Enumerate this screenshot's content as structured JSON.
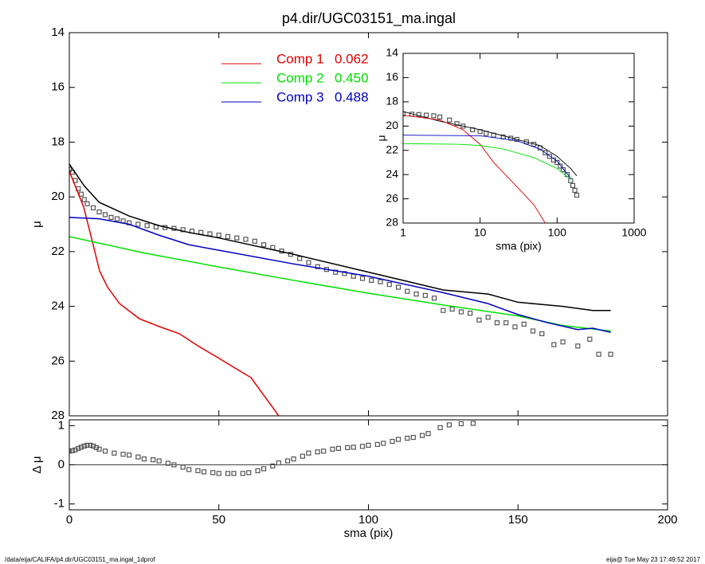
{
  "chart_data": [
    {
      "type": "line",
      "title": "p4.dir/UGC03151_ma.ingal",
      "ylabel": "μ",
      "xlim": [
        0,
        200
      ],
      "xticks": [
        0,
        50,
        100,
        150,
        200
      ],
      "ylim": [
        28,
        14
      ],
      "yticks": [
        14,
        16,
        18,
        20,
        22,
        24,
        26,
        28
      ],
      "series": [
        {
          "mode": "points",
          "color": "#555555",
          "x": [
            0,
            1,
            2,
            3,
            4,
            5,
            6,
            8,
            10,
            12,
            14,
            16,
            18,
            20,
            23,
            26,
            29,
            32,
            35,
            38,
            41,
            44,
            47,
            50,
            53,
            56,
            59,
            62,
            65,
            68,
            71,
            74,
            77,
            80,
            83,
            86,
            89,
            92,
            95,
            98,
            101,
            104,
            107,
            110,
            113,
            116,
            119,
            122,
            125,
            128,
            131,
            134,
            137,
            140,
            143,
            146,
            149,
            152,
            155,
            158,
            162,
            165,
            170,
            174,
            177,
            181
          ],
          "values": [
            19.0,
            19.1,
            19.4,
            19.7,
            19.9,
            20.1,
            20.25,
            20.4,
            20.55,
            20.65,
            20.75,
            20.8,
            20.88,
            20.95,
            21.0,
            21.05,
            21.1,
            21.12,
            21.15,
            21.2,
            21.25,
            21.3,
            21.35,
            21.4,
            21.45,
            21.5,
            21.55,
            21.62,
            21.75,
            21.85,
            21.98,
            22.1,
            22.25,
            22.4,
            22.55,
            22.65,
            22.75,
            22.8,
            22.9,
            22.98,
            23.05,
            23.1,
            23.2,
            23.3,
            23.45,
            23.55,
            23.6,
            23.7,
            24.15,
            24.1,
            24.2,
            24.25,
            24.5,
            24.4,
            24.6,
            24.6,
            24.75,
            24.65,
            24.9,
            25.0,
            25.4,
            25.3,
            25.45,
            25.2,
            25.75,
            25.75
          ]
        },
        {
          "mode": "line",
          "color": "#000000",
          "x": [
            0,
            5,
            10,
            20,
            30,
            40,
            50,
            75,
            100,
            125,
            140,
            150,
            165,
            175,
            181
          ],
          "values": [
            18.8,
            19.6,
            20.2,
            20.7,
            21.05,
            21.3,
            21.5,
            22.1,
            22.75,
            23.4,
            23.55,
            23.85,
            24.0,
            24.15,
            24.15
          ]
        },
        {
          "mode": "line",
          "name": "Comp 1",
          "fraction": "0.062",
          "color": "#e00000",
          "x": [
            0,
            4.8,
            7.5,
            10.1,
            12.8,
            16.8,
            23.4,
            30.1,
            36.8,
            43.4,
            50.1,
            56.7,
            60.7,
            64.7,
            68.7,
            70.0
          ],
          "values": [
            19.06,
            20.37,
            21.54,
            22.7,
            23.3,
            23.9,
            24.45,
            24.74,
            25.0,
            25.47,
            25.9,
            26.34,
            26.6,
            27.2,
            27.8,
            28.0
          ]
        },
        {
          "mode": "line",
          "name": "Comp 2",
          "fraction": "0.450",
          "color": "#00e000",
          "x": [
            0,
            25,
            50,
            75,
            100,
            125,
            150,
            165,
            181
          ],
          "values": [
            21.45,
            22.05,
            22.56,
            23.05,
            23.52,
            23.95,
            24.35,
            24.7,
            24.9
          ]
        },
        {
          "mode": "line",
          "name": "Comp 3",
          "fraction": "0.488",
          "color": "#0000c0",
          "x": [
            0,
            10,
            20,
            30,
            40,
            50,
            75,
            100,
            125,
            140,
            150,
            160,
            170,
            175,
            181
          ],
          "values": [
            20.75,
            20.8,
            21.0,
            21.4,
            21.75,
            21.95,
            22.45,
            22.9,
            23.5,
            23.9,
            24.3,
            24.6,
            24.85,
            24.8,
            24.95
          ]
        }
      ]
    },
    {
      "type": "line",
      "xlabel": "sma (pix)",
      "ylabel": "Δ μ",
      "xlim": [
        0,
        200
      ],
      "xticks": [
        0,
        50,
        100,
        150,
        200
      ],
      "ylim": [
        -1.15,
        1.15
      ],
      "yticks": [
        -1,
        0,
        1
      ],
      "reference_line": 0,
      "series": [
        {
          "mode": "points",
          "color": "#555555",
          "x": [
            0,
            1,
            2,
            3,
            4,
            5,
            6,
            7,
            8,
            9,
            10,
            12,
            15,
            18,
            20,
            23,
            25,
            28,
            30,
            33,
            35,
            38,
            40,
            43,
            45,
            48,
            50,
            53,
            55,
            58,
            60,
            63,
            65,
            68,
            70,
            73,
            75,
            78,
            80,
            83,
            85,
            88,
            90,
            93,
            95,
            98,
            100,
            103,
            105,
            108,
            110,
            113,
            115,
            118,
            120,
            124,
            127,
            131,
            135
          ],
          "values": [
            0.35,
            0.36,
            0.38,
            0.42,
            0.45,
            0.48,
            0.5,
            0.5,
            0.48,
            0.44,
            0.4,
            0.35,
            0.3,
            0.27,
            0.25,
            0.2,
            0.15,
            0.13,
            0.1,
            0.04,
            0,
            -0.06,
            -0.12,
            -0.15,
            -0.18,
            -0.2,
            -0.22,
            -0.22,
            -0.22,
            -0.22,
            -0.2,
            -0.15,
            -0.1,
            -0.03,
            0.05,
            0.1,
            0.15,
            0.22,
            0.3,
            0.33,
            0.35,
            0.4,
            0.42,
            0.44,
            0.45,
            0.47,
            0.5,
            0.52,
            0.55,
            0.6,
            0.65,
            0.68,
            0.7,
            0.75,
            0.8,
            0.95,
            1.02,
            1.05,
            1.06
          ]
        }
      ]
    },
    {
      "type": "line",
      "xlabel": "sma (pix)",
      "ylabel": "μ",
      "xlog": true,
      "xlim": [
        1,
        1000
      ],
      "xticks": [
        1,
        10,
        100,
        1000
      ],
      "ylim": [
        28,
        14
      ],
      "yticks": [
        14,
        16,
        18,
        20,
        22,
        24,
        26,
        28
      ],
      "series": [
        {
          "mode": "points",
          "color": "#555555",
          "x": [
            1,
            1.3,
            1.6,
            2,
            2.5,
            3,
            4,
            5,
            6,
            8,
            10,
            12,
            15,
            20,
            25,
            30,
            40,
            50,
            60,
            70,
            80,
            90,
            100,
            110,
            120,
            135,
            150,
            160,
            170,
            180
          ],
          "values": [
            19.0,
            19.02,
            19.05,
            19.1,
            19.15,
            19.25,
            19.5,
            19.8,
            20.0,
            20.3,
            20.45,
            20.6,
            20.75,
            20.9,
            21.0,
            21.1,
            21.3,
            21.5,
            21.8,
            22.2,
            22.5,
            22.8,
            23.0,
            23.3,
            23.6,
            24.0,
            24.5,
            24.9,
            25.3,
            25.7
          ]
        },
        {
          "mode": "line",
          "color": "#000000",
          "x": [
            1,
            3,
            10,
            30,
            60,
            100,
            150,
            180
          ],
          "values": [
            18.8,
            19.6,
            20.3,
            21.1,
            21.6,
            22.5,
            23.5,
            24.1
          ]
        },
        {
          "mode": "line",
          "color": "#e00000",
          "x": [
            1,
            3,
            6,
            10,
            15,
            30,
            50,
            70
          ],
          "values": [
            19.1,
            19.5,
            20.3,
            21.5,
            23.0,
            25.0,
            26.5,
            28.0
          ]
        },
        {
          "mode": "line",
          "color": "#00e000",
          "x": [
            1,
            5,
            10,
            20,
            50,
            100,
            150
          ],
          "values": [
            21.45,
            21.5,
            21.6,
            21.9,
            22.6,
            23.5,
            24.4
          ]
        },
        {
          "mode": "line",
          "color": "#0000c0",
          "x": [
            1,
            10,
            30,
            60,
            100,
            150
          ],
          "values": [
            20.75,
            20.8,
            21.2,
            21.9,
            22.9,
            24.3
          ]
        }
      ]
    }
  ],
  "footer": {
    "left": "/data/eija/CALIFA/p4.dir/UGC03151_ma.ingal_1dprof",
    "right": "eija@  Tue May 23 17:49:52 2017"
  }
}
